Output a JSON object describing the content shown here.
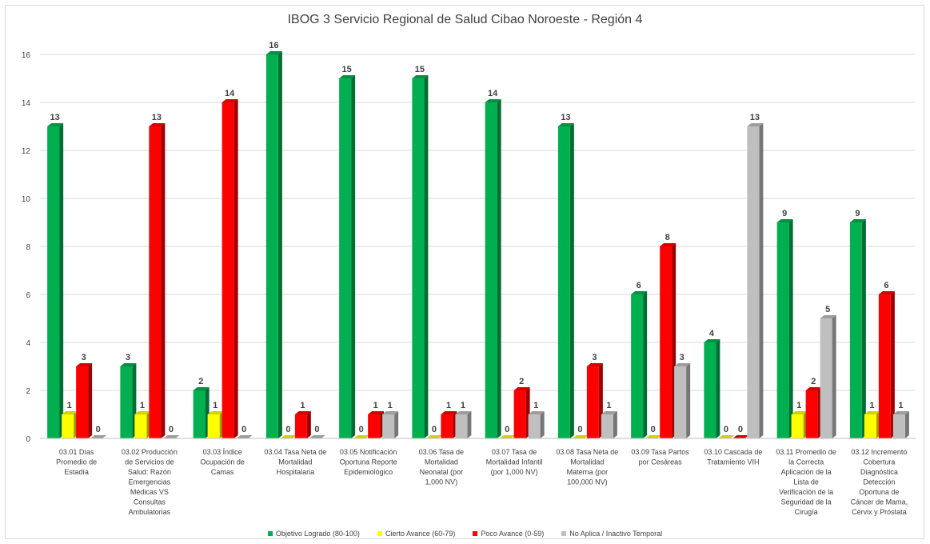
{
  "chart_data": {
    "type": "bar",
    "title": "IBOG 3 Servicio Regional de Salud Cibao Noroeste - Región 4",
    "xlabel": "",
    "ylabel": "",
    "ylim": [
      0,
      16
    ],
    "yticks": [
      0,
      2,
      4,
      6,
      8,
      10,
      12,
      14,
      16
    ],
    "grid": true,
    "legend_position": "bottom",
    "categories": [
      [
        "03.01 Días",
        "Promedio de",
        "Estadía"
      ],
      [
        "03.02 Producción",
        "de Servicios de",
        "Salud: Razón",
        "Emergencias",
        "Médicas VS",
        "Consultas",
        "Ambulatorias"
      ],
      [
        "03.03 Índice",
        "Ocupación de",
        "Camas"
      ],
      [
        "03.04 Tasa Neta de",
        "Mortalidad",
        "Hospitalaria"
      ],
      [
        "03.05 Notificación",
        "Oportuna Reporte",
        "Epidemiológico"
      ],
      [
        "03.06 Tasa de",
        "Mortalidad",
        "Neonatal (por",
        "1,000 NV)"
      ],
      [
        "03.07 Tasa de",
        "Mortalidad Infantil",
        "(por 1,000 NV)"
      ],
      [
        "03.08 Tasa Neta de",
        "Mortalidad",
        "Materna (por",
        "100,000 NV)"
      ],
      [
        "03.09 Tasa Partos",
        "por Cesáreas"
      ],
      [
        "03.10 Cascada de",
        "Tratamiento VIH"
      ],
      [
        "03.11 Promedio de",
        "la Correcta",
        "Aplicación de la",
        "Lista de",
        "Verificación de la",
        "Seguridad de la",
        "Cirugía"
      ],
      [
        "03.12 Incremento",
        "Cobertura",
        "Diagnóstica",
        "Detección",
        "Oportuna de",
        "Cáncer de Mama,",
        "Cérvix y Próstata"
      ]
    ],
    "series": [
      {
        "name": "Objetivo Logrado (80-100)",
        "color": "#00b050",
        "values": [
          13,
          3,
          2,
          16,
          15,
          15,
          14,
          13,
          6,
          4,
          9,
          9
        ]
      },
      {
        "name": "Cierto Avance (60-79)",
        "color": "#ffff00",
        "values": [
          1,
          1,
          1,
          0,
          0,
          0,
          0,
          0,
          0,
          0,
          1,
          1
        ]
      },
      {
        "name": "Poco Avance (0-59)",
        "color": "#ff0000",
        "values": [
          3,
          13,
          14,
          1,
          1,
          1,
          2,
          3,
          8,
          0,
          2,
          6
        ]
      },
      {
        "name": "No Aplica / Inactivo Temporal",
        "color": "#bfbfbf",
        "values": [
          0,
          0,
          0,
          0,
          1,
          1,
          1,
          1,
          3,
          13,
          5,
          1
        ]
      }
    ]
  }
}
